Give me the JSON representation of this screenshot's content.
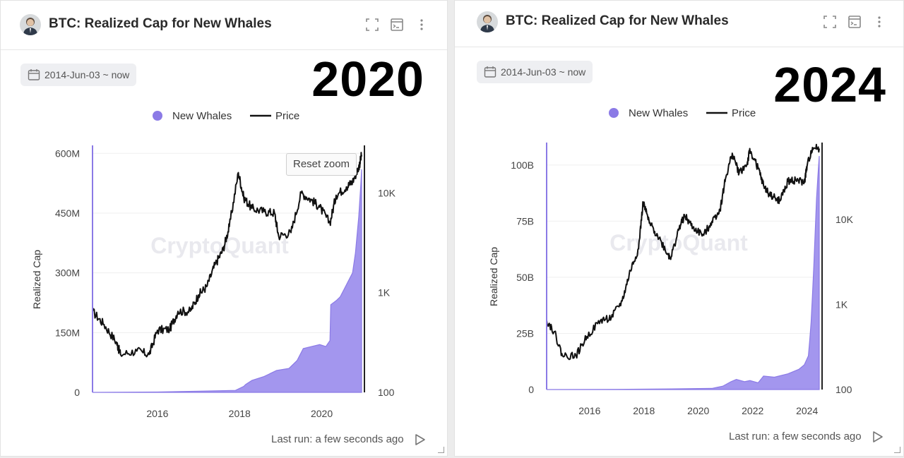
{
  "panels": [
    {
      "title": "BTC: Realized Cap for New Whales",
      "date_range": "2014-Jun-03 ~ now",
      "year_overlay": "2020",
      "reset_zoom_label": "Reset zoom",
      "footer": "Last run: a few seconds ago",
      "watermark": "CryptoQuant"
    },
    {
      "title": "BTC: Realized Cap for New Whales",
      "date_range": "2014-Jun-03 ~ now",
      "year_overlay": "2024",
      "footer": "Last run: a few seconds ago",
      "watermark": "CryptoQuant"
    }
  ],
  "chart_data": [
    {
      "type": "area",
      "legend": [
        "New Whales",
        "Price"
      ],
      "legend_placement": "top-center",
      "ylabel": "Realized Cap",
      "y_ticks": [
        "0",
        "150M",
        "300M",
        "450M",
        "600M"
      ],
      "y_right_ticks": [
        "100",
        "1K",
        "10K"
      ],
      "y_right_scale": "log",
      "x_ticks": [
        "2016",
        "2018",
        "2020"
      ],
      "ylim": [
        0,
        620000000
      ],
      "y2lim": [
        100,
        30000
      ],
      "xlim": [
        2014.42,
        2020.97
      ],
      "series": [
        {
          "name": "New Whales",
          "axis": "left",
          "color": "#8b7ae6",
          "x": [
            2014.42,
            2016.0,
            2017.0,
            2017.9,
            2018.1,
            2018.15,
            2018.3,
            2018.6,
            2018.9,
            2019.2,
            2019.4,
            2019.55,
            2019.75,
            2019.95,
            2020.1,
            2020.2,
            2020.22,
            2020.35,
            2020.45,
            2020.55,
            2020.65,
            2020.75,
            2020.82,
            2020.9,
            2020.95,
            2020.97
          ],
          "values": [
            0,
            1000000,
            3000000,
            5000000,
            15000000,
            20000000,
            30000000,
            40000000,
            55000000,
            60000000,
            80000000,
            110000000,
            115000000,
            120000000,
            115000000,
            130000000,
            220000000,
            230000000,
            240000000,
            260000000,
            280000000,
            300000000,
            350000000,
            440000000,
            520000000,
            560000000
          ]
        },
        {
          "name": "Price",
          "axis": "right",
          "color": "#111111",
          "x": [
            2014.42,
            2014.7,
            2015.0,
            2015.1,
            2015.5,
            2015.8,
            2016.0,
            2016.3,
            2016.5,
            2016.8,
            2017.0,
            2017.2,
            2017.4,
            2017.6,
            2017.75,
            2017.97,
            2018.1,
            2018.3,
            2018.6,
            2018.85,
            2018.95,
            2019.25,
            2019.5,
            2019.75,
            2019.95,
            2020.2,
            2020.35,
            2020.6,
            2020.75,
            2020.9,
            2020.97
          ],
          "values": [
            650,
            480,
            320,
            240,
            260,
            240,
            420,
            430,
            650,
            650,
            950,
            1150,
            1900,
            2700,
            4600,
            16000,
            9000,
            7000,
            6500,
            6300,
            3700,
            4000,
            10000,
            8500,
            7200,
            5000,
            9500,
            11500,
            13000,
            18000,
            24000
          ]
        }
      ]
    },
    {
      "type": "area",
      "legend": [
        "New Whales",
        "Price"
      ],
      "legend_placement": "top-center",
      "ylabel": "Realized Cap",
      "y_ticks": [
        "0",
        "25B",
        "50B",
        "75B",
        "100B"
      ],
      "y_right_ticks": [
        "100",
        "1K",
        "10K"
      ],
      "y_right_scale": "log",
      "x_ticks": [
        "2016",
        "2018",
        "2020",
        "2022",
        "2024"
      ],
      "ylim": [
        0,
        110000000000
      ],
      "y2lim": [
        100,
        80000
      ],
      "xlim": [
        2014.42,
        2024.45
      ],
      "series": [
        {
          "name": "New Whales",
          "axis": "left",
          "color": "#8b7ae6",
          "x": [
            2014.42,
            2017.0,
            2019.0,
            2020.5,
            2020.9,
            2021.2,
            2021.4,
            2021.7,
            2021.9,
            2022.2,
            2022.4,
            2022.8,
            2023.3,
            2023.7,
            2023.9,
            2024.05,
            2024.1,
            2024.15,
            2024.2,
            2024.25,
            2024.3,
            2024.35,
            2024.4,
            2024.45
          ],
          "values": [
            0,
            100000000,
            300000000,
            500000000,
            1500000000,
            3500000000,
            4500000000,
            3500000000,
            4000000000,
            3000000000,
            6000000000,
            5500000000,
            7000000000,
            9000000000,
            11000000000,
            15000000000,
            22000000000,
            30000000000,
            42000000000,
            55000000000,
            70000000000,
            85000000000,
            95000000000,
            104000000000
          ]
        },
        {
          "name": "Price",
          "axis": "right",
          "color": "#111111",
          "x": [
            2014.42,
            2014.7,
            2015.0,
            2015.5,
            2015.9,
            2016.4,
            2016.8,
            2017.2,
            2017.5,
            2017.8,
            2017.97,
            2018.2,
            2018.5,
            2018.9,
            2019.0,
            2019.3,
            2019.5,
            2019.8,
            2020.2,
            2020.5,
            2020.8,
            2021.0,
            2021.25,
            2021.5,
            2021.8,
            2021.9,
            2022.2,
            2022.4,
            2022.6,
            2022.9,
            2023.0,
            2023.3,
            2023.6,
            2023.9,
            2024.0,
            2024.2,
            2024.45
          ],
          "values": [
            650,
            480,
            250,
            250,
            420,
            650,
            700,
            1100,
            2500,
            4500,
            16000,
            9000,
            6500,
            3800,
            3600,
            8000,
            11000,
            8000,
            6500,
            9500,
            13000,
            30000,
            60000,
            35000,
            45000,
            65000,
            40000,
            25000,
            20000,
            17000,
            16500,
            28000,
            29000,
            27000,
            42000,
            70000,
            68000
          ]
        }
      ]
    }
  ]
}
